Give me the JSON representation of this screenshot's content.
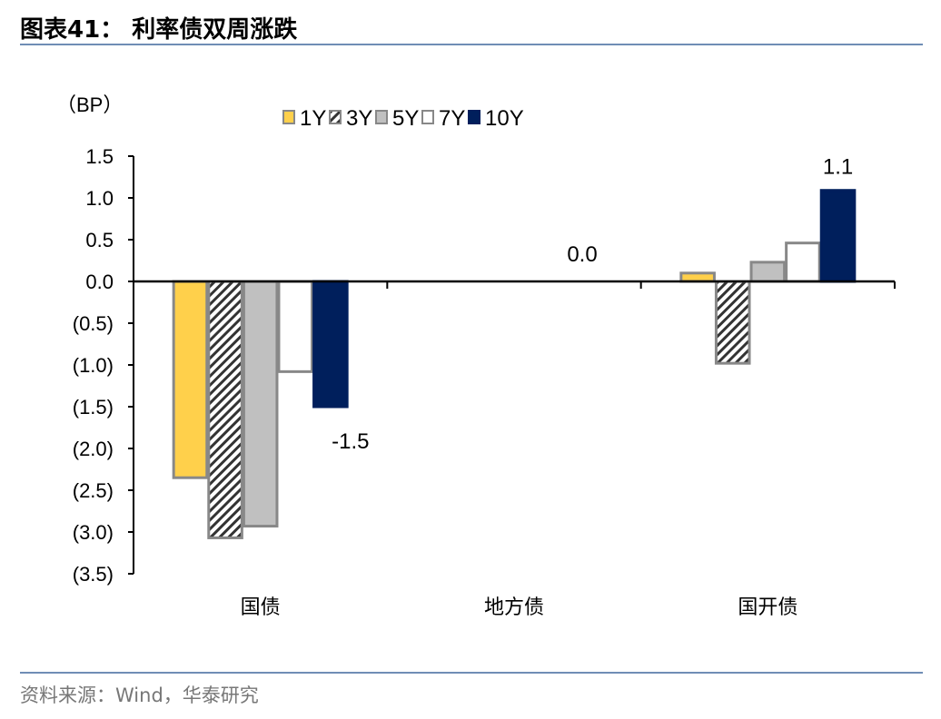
{
  "title": "图表41：  利率债双周涨跌",
  "source": "资料来源：Wind，华泰研究",
  "chart_data": {
    "type": "bar",
    "ylabel": "（BP）",
    "categories": [
      "国债",
      "地方债",
      "国开债"
    ],
    "ylim": [
      -3.5,
      1.5
    ],
    "yticks": [
      1.5,
      1.0,
      0.5,
      0.0,
      -0.5,
      -1.0,
      -1.5,
      -2.0,
      -2.5,
      -3.0,
      -3.5
    ],
    "ytick_labels": [
      "1.5",
      "1.0",
      "0.5",
      "0.0",
      "(0.5)",
      "(1.0)",
      "(1.5)",
      "(2.0)",
      "(2.5)",
      "(3.0)",
      "(3.5)"
    ],
    "legend_placement": "top",
    "grid": false,
    "series": [
      {
        "name": "1Y",
        "values": [
          -2.35,
          0.0,
          0.1
        ],
        "color": "#ffd04b",
        "pattern": "solid"
      },
      {
        "name": "3Y",
        "values": [
          -3.07,
          0.0,
          -0.98
        ],
        "color": "#ffffff",
        "pattern": "hatched"
      },
      {
        "name": "5Y",
        "values": [
          -2.93,
          0.0,
          0.23
        ],
        "color": "#c0c0c0",
        "pattern": "solid"
      },
      {
        "name": "7Y",
        "values": [
          -1.08,
          0.0,
          0.46
        ],
        "color": "#ffffff",
        "pattern": "solid"
      },
      {
        "name": "10Y",
        "values": [
          -1.5,
          0.0,
          1.09
        ],
        "color": "#001f5c",
        "pattern": "solid"
      }
    ],
    "data_labels": [
      {
        "category": "国债",
        "series": "10Y",
        "text": "-1.5"
      },
      {
        "category": "地方债",
        "series": "10Y",
        "text": "0.0"
      },
      {
        "category": "国开债",
        "series": "10Y",
        "text": "1.1"
      }
    ]
  }
}
